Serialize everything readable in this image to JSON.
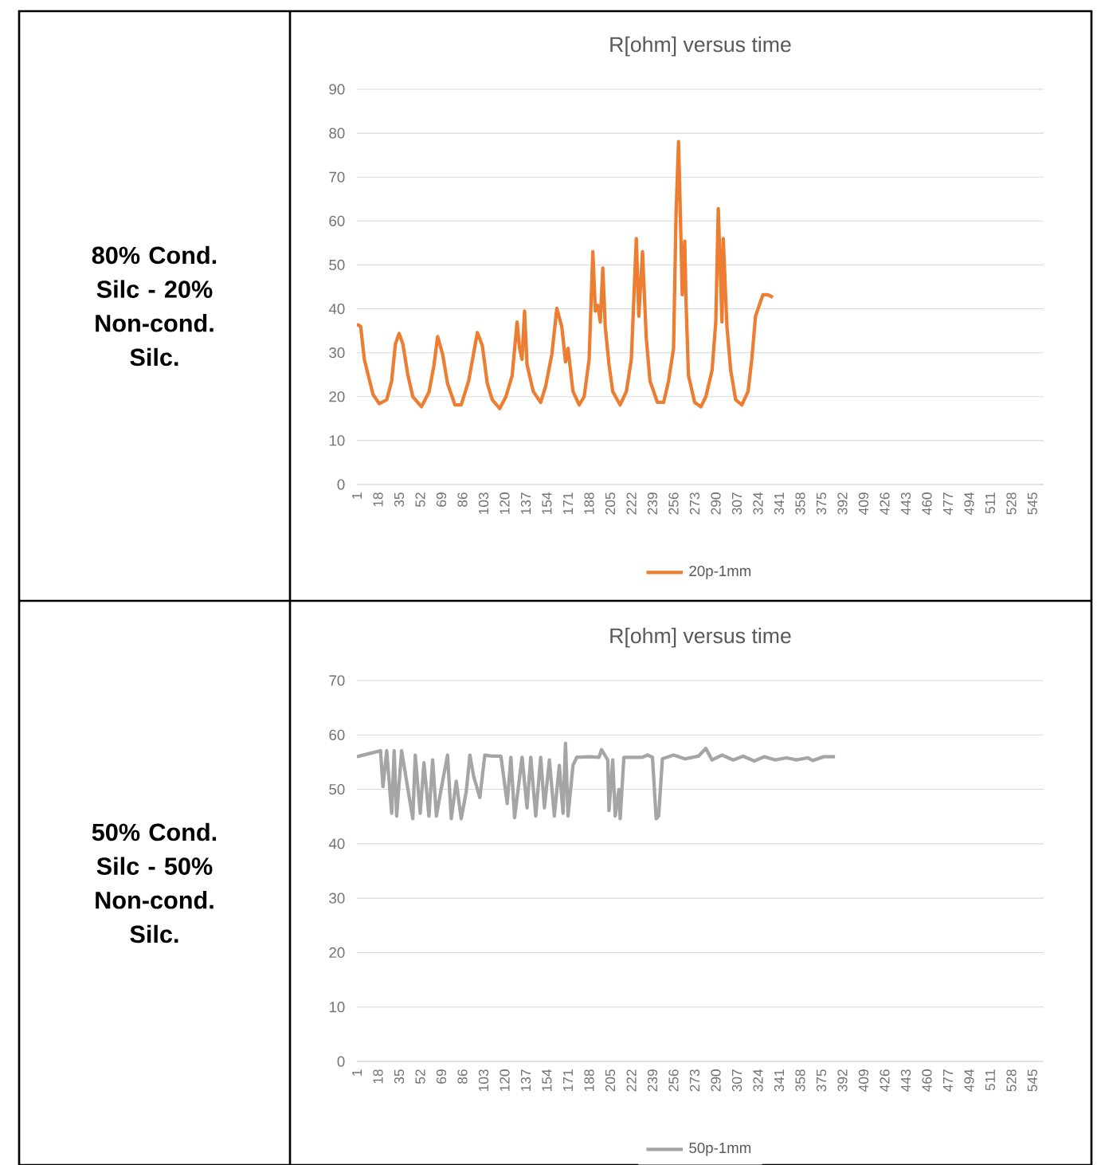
{
  "chart_data": [
    {
      "type": "line",
      "title": "R[ohm] versus time",
      "annotations": [
        "80% Cond. Silc - 20% Non-cond. Silc."
      ],
      "xlim": [
        1,
        554
      ],
      "xticks": [
        1,
        18,
        35,
        52,
        69,
        86,
        103,
        120,
        137,
        154,
        171,
        188,
        205,
        222,
        239,
        256,
        273,
        290,
        307,
        324,
        341,
        358,
        375,
        392,
        409,
        426,
        443,
        460,
        477,
        494,
        511,
        528,
        545
      ],
      "ylim": [
        0,
        90
      ],
      "yticks": [
        0,
        10,
        20,
        30,
        40,
        50,
        60,
        70,
        80,
        90
      ],
      "grid": "y",
      "legend": "bottom",
      "series": [
        {
          "name": "20p-1mm",
          "color": "#ed7d31",
          "x": [
            1,
            4,
            7,
            10,
            14,
            19,
            25,
            29,
            32,
            35,
            38,
            42,
            46,
            53,
            59,
            63,
            66,
            70,
            74,
            80,
            85,
            91,
            98,
            102,
            106,
            110,
            116,
            121,
            126,
            130,
            132,
            134,
            136,
            138,
            143,
            149,
            153,
            158,
            162,
            166,
            169,
            171,
            175,
            180,
            184,
            188,
            191,
            193,
            195,
            197,
            199,
            201,
            204,
            207,
            213,
            218,
            222,
            226,
            228,
            231,
            234,
            237,
            243,
            248,
            252,
            256,
            258,
            260,
            262,
            263,
            265,
            266,
            268,
            273,
            278,
            282,
            287,
            290,
            292,
            295,
            296,
            299,
            302,
            306,
            311,
            316,
            319,
            322,
            325,
            328,
            332,
            336
          ],
          "values": [
            36.5,
            36,
            28.5,
            25,
            20.5,
            18.4,
            19.3,
            23.6,
            32,
            34.4,
            32,
            25,
            20,
            17.7,
            21,
            27,
            33.7,
            29.7,
            23,
            18.1,
            18.1,
            23.6,
            34.6,
            31.6,
            23,
            19.3,
            17.3,
            20,
            24.8,
            37,
            31,
            28.5,
            39.5,
            27.3,
            21.2,
            18.7,
            22.4,
            29.7,
            40.1,
            35.9,
            27.9,
            31,
            21.2,
            18.1,
            20,
            28.5,
            53,
            39.5,
            40.8,
            37,
            49.3,
            35.9,
            27.3,
            21.2,
            18.1,
            21.2,
            28.5,
            56,
            38.3,
            53,
            33.4,
            23.6,
            18.7,
            18.7,
            23.6,
            31,
            61.6,
            78.1,
            55.4,
            43.2,
            55.4,
            42,
            24.8,
            18.7,
            17.7,
            20,
            26,
            37,
            62.8,
            37,
            56,
            35.9,
            26,
            19.3,
            18.1,
            21.2,
            28.5,
            38.3,
            40.8,
            43.2,
            43.2,
            42.6
          ]
        }
      ]
    },
    {
      "type": "line",
      "title": "R[ohm] versus time",
      "annotations": [
        "50% Cond. Silc - 50% Non-cond. Silc."
      ],
      "xlim": [
        1,
        554
      ],
      "xticks": [
        1,
        18,
        35,
        52,
        69,
        86,
        103,
        120,
        137,
        154,
        171,
        188,
        205,
        222,
        239,
        256,
        273,
        290,
        307,
        324,
        341,
        358,
        375,
        392,
        409,
        426,
        443,
        460,
        477,
        494,
        511,
        528,
        545
      ],
      "ylim": [
        0,
        70
      ],
      "yticks": [
        0,
        10,
        20,
        30,
        40,
        50,
        60,
        70
      ],
      "grid": "y",
      "legend": "bottom",
      "series": [
        {
          "name": "50p-1mm",
          "color": "#a5a5a5",
          "x": [
            1,
            20,
            22,
            25,
            29,
            31,
            33,
            37,
            46,
            48,
            52,
            55,
            59,
            62,
            65,
            70,
            74,
            77,
            81,
            85,
            89,
            92,
            95,
            100,
            104,
            110,
            117,
            122,
            125,
            128,
            134,
            138,
            141,
            145,
            149,
            152,
            156,
            160,
            164,
            167,
            169,
            171,
            175,
            178,
            188,
            196,
            198,
            203,
            204,
            207,
            209,
            212,
            213,
            216,
            231,
            235,
            239,
            242,
            244,
            247,
            256,
            265,
            276,
            282,
            287,
            295,
            304,
            312,
            321,
            329,
            338,
            347,
            355,
            364,
            368,
            377,
            386
          ],
          "values": [
            56,
            57.1,
            50.5,
            57.1,
            45.6,
            57.1,
            45.1,
            57.1,
            44.6,
            56.3,
            45.6,
            54.9,
            45.1,
            55.4,
            45.1,
            51.5,
            56.3,
            44.6,
            51.5,
            44.6,
            49.5,
            56.3,
            52.4,
            48.5,
            56.3,
            56.1,
            56.1,
            47.4,
            55.9,
            44.8,
            55.9,
            46.6,
            55.9,
            45.1,
            55.9,
            46.6,
            55.4,
            45.1,
            54.4,
            45.6,
            58.5,
            45.1,
            54.4,
            55.9,
            56,
            55.9,
            57.3,
            55.4,
            46.1,
            55.4,
            45.1,
            50,
            44.6,
            55.9,
            55.9,
            56.3,
            55.9,
            44.6,
            45.1,
            55.6,
            56.3,
            55.6,
            56.1,
            57.5,
            55.4,
            56.3,
            55.4,
            56.1,
            55.2,
            56,
            55.4,
            55.8,
            55.4,
            55.8,
            55.3,
            56,
            56
          ]
        }
      ]
    }
  ]
}
